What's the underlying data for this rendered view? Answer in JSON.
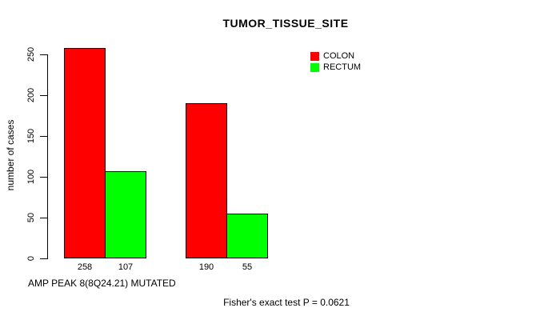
{
  "chart_data": {
    "type": "bar",
    "title": "TUMOR_TISSUE_SITE",
    "ylabel": "number of cases",
    "xlabel": "AMP PEAK  8(8Q24.21) MUTATED",
    "footnote": "Fisher's exact test P = 0.0621",
    "series": [
      {
        "name": "COLON",
        "color": "#ff0000",
        "values": [
          258,
          190
        ]
      },
      {
        "name": "RECTUM",
        "color": "#00ff00",
        "values": [
          107,
          55
        ]
      }
    ],
    "bar_value_labels": [
      [
        "258",
        "107"
      ],
      [
        "190",
        "55"
      ]
    ],
    "yticks": [
      0,
      50,
      100,
      150,
      200,
      250
    ],
    "ylim": [
      0,
      260
    ],
    "grid": false,
    "legend_position": "top-right",
    "bar_border_color": "#000000",
    "background": "#ffffff",
    "text_color": "#000000"
  }
}
